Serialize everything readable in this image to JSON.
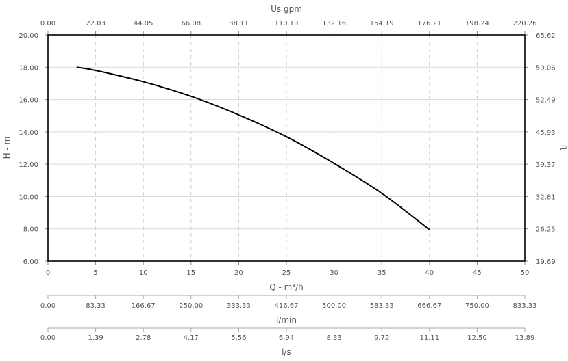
{
  "chart_data": {
    "type": "line",
    "xlabel": "Q - m³/h",
    "ylabel": "H - m",
    "xlim": [
      0,
      50
    ],
    "ylim": [
      6,
      20
    ],
    "x_ticks": [
      "0",
      "5",
      "10",
      "15",
      "20",
      "25",
      "30",
      "35",
      "40",
      "45",
      "50"
    ],
    "y_ticks": [
      "6.00",
      "8.00",
      "10.00",
      "12.00",
      "14.00",
      "16.00",
      "18.00",
      "20.00"
    ],
    "top_axis": {
      "label": "Us gpm",
      "ticks": [
        "0.00",
        "22.03",
        "44.05",
        "66.08",
        "88.11",
        "110.13",
        "132.16",
        "154.19",
        "176.21",
        "198.24",
        "220.26"
      ]
    },
    "right_axis": {
      "label": "ft",
      "ticks": [
        "19.69",
        "26.25",
        "32.81",
        "39.37",
        "45.93",
        "52.49",
        "59.06",
        "65.62"
      ]
    },
    "lmin_axis": {
      "label": "l/min",
      "ticks": [
        "0.00",
        "83.33",
        "166.67",
        "250.00",
        "333.33",
        "416.67",
        "500.00",
        "583.33",
        "666.67",
        "750.00",
        "833.33"
      ]
    },
    "ls_axis": {
      "label": "l/s",
      "ticks": [
        "0.00",
        "1.39",
        "2.78",
        "4.17",
        "5.56",
        "6.94",
        "8.33",
        "9.72",
        "11.11",
        "12.50",
        "13.89"
      ]
    },
    "grid": true,
    "series": [
      {
        "color": "#000000",
        "x": [
          3,
          5,
          10,
          15,
          20,
          25,
          30,
          35,
          40
        ],
        "y": [
          18.0,
          17.8,
          17.1,
          16.2,
          15.05,
          13.7,
          12.05,
          10.2,
          7.95
        ]
      }
    ]
  }
}
